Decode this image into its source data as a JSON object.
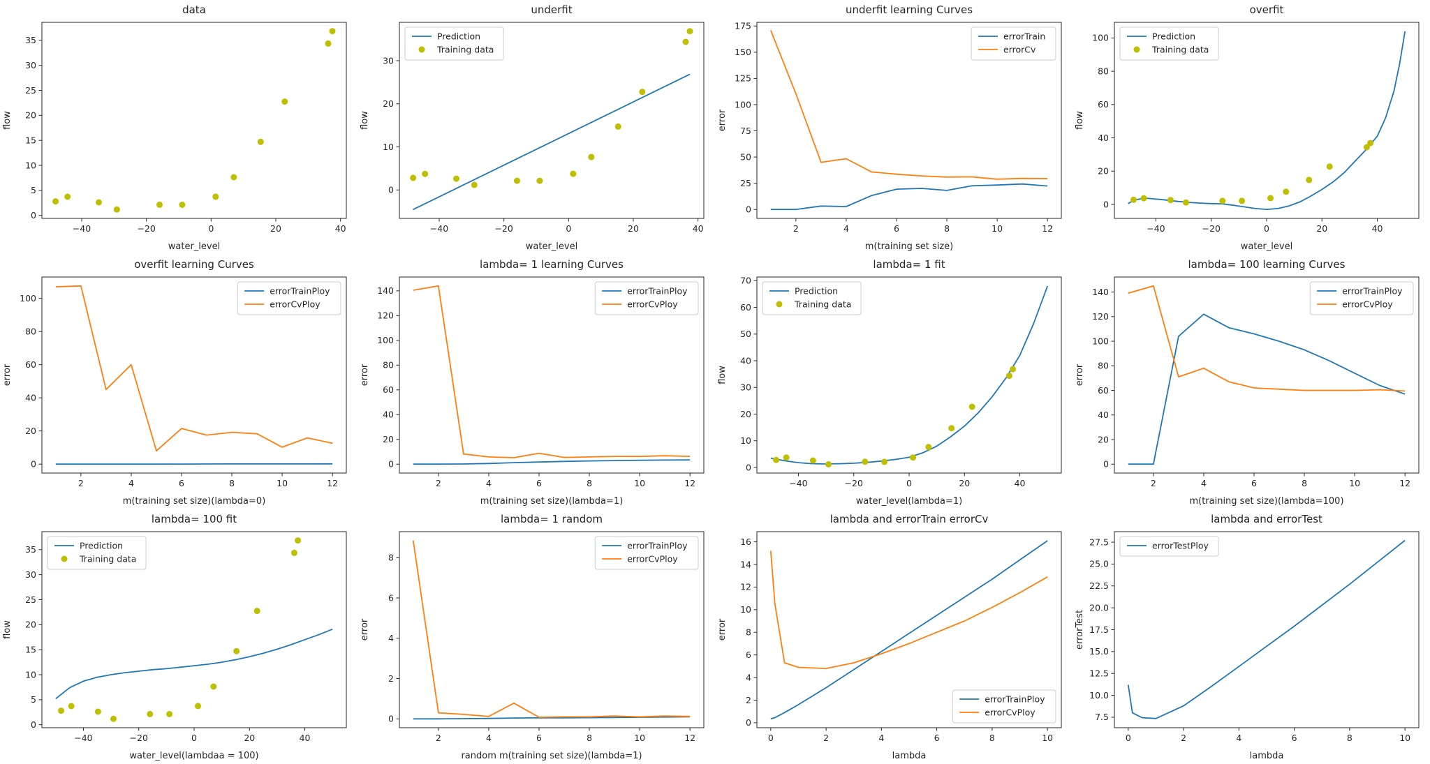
{
  "figure": {
    "background": "#ffffff"
  },
  "colors": {
    "blue": "#1f77b4",
    "orange": "#ff7f0e",
    "training_dots": "#bfbf00",
    "spine": "#262626",
    "legend_edge": "#cccccc"
  },
  "chart_data": [
    {
      "type": "scatter",
      "title": "data",
      "xlabel": "water_level",
      "ylabel": "flow",
      "xlim": [
        -52.3,
        41.8
      ],
      "ylim": [
        -0.6,
        38.6
      ],
      "xticks": [
        -40,
        -20,
        0,
        20,
        40
      ],
      "yticks": [
        0,
        5,
        10,
        15,
        20,
        25,
        30,
        35
      ],
      "legend": null,
      "series": [
        {
          "name": "Training data",
          "type": "scatter",
          "color": "#bfbf00",
          "x": [
            -15.94,
            -29.15,
            36.19,
            37.49,
            -48.06,
            -8.94,
            15.31,
            -34.71,
            1.39,
            -44.38,
            7.01,
            22.76
          ],
          "y": [
            2.13,
            1.17,
            34.36,
            36.84,
            2.81,
            2.12,
            14.71,
            2.61,
            3.74,
            3.73,
            7.63,
            22.75
          ]
        }
      ]
    },
    {
      "type": "mixed",
      "title": "underfit",
      "xlabel": "water_level",
      "ylabel": "flow",
      "xlim": [
        -52.3,
        41.8
      ],
      "ylim": [
        -6.6,
        38.9
      ],
      "xticks": [
        -40,
        -20,
        0,
        20,
        40
      ],
      "yticks": [
        0,
        10,
        20,
        30
      ],
      "legend": "upper-left",
      "series": [
        {
          "name": "Prediction",
          "type": "line",
          "color": "#1f77b4",
          "x": [
            -48.06,
            37.49
          ],
          "y": [
            -4.55,
            26.85
          ]
        },
        {
          "name": "Training data",
          "type": "scatter",
          "color": "#bfbf00",
          "x": [
            -15.94,
            -29.15,
            36.19,
            37.49,
            -48.06,
            -8.94,
            15.31,
            -34.71,
            1.39,
            -44.38,
            7.01,
            22.76
          ],
          "y": [
            2.13,
            1.17,
            34.36,
            36.84,
            2.81,
            2.12,
            14.71,
            2.61,
            3.74,
            3.73,
            7.63,
            22.75
          ]
        }
      ]
    },
    {
      "type": "line",
      "title": "underfit learning Curves",
      "xlabel": "m(training set size)",
      "ylabel": "error",
      "xlim": [
        0.45,
        12.55
      ],
      "ylim": [
        -8.5,
        178.5
      ],
      "xticks": [
        2,
        4,
        6,
        8,
        10,
        12
      ],
      "yticks": [
        0,
        25,
        50,
        75,
        100,
        125,
        150,
        175
      ],
      "legend": "upper-right",
      "series": [
        {
          "name": "errorTrain",
          "type": "line",
          "color": "#1f77b4",
          "x": [
            1,
            2,
            3,
            4,
            5,
            6,
            7,
            8,
            9,
            10,
            11,
            12
          ],
          "y": [
            0,
            0,
            3.3,
            2.8,
            13.2,
            19.4,
            20.1,
            18.2,
            22.6,
            23.3,
            24.3,
            22.4
          ]
        },
        {
          "name": "errorCv",
          "type": "line",
          "color": "#ff7f0e",
          "x": [
            1,
            2,
            3,
            4,
            5,
            6,
            7,
            8,
            9,
            10,
            11,
            12
          ],
          "y": [
            170.9,
            110.3,
            45.0,
            48.4,
            35.9,
            33.6,
            32.0,
            30.9,
            31.1,
            28.9,
            29.6,
            29.4
          ]
        }
      ]
    },
    {
      "type": "mixed",
      "title": "overfit",
      "xlabel": "water_level",
      "ylabel": "flow",
      "xlim": [
        -55,
        55
      ],
      "ylim": [
        -8.4,
        109.4
      ],
      "xticks": [
        -40,
        -20,
        0,
        20,
        40
      ],
      "yticks": [
        0,
        20,
        40,
        60,
        80,
        100
      ],
      "legend": "upper-left",
      "series": [
        {
          "name": "Prediction",
          "type": "line",
          "color": "#1f77b4",
          "x": [
            -50,
            -48,
            -44,
            -40,
            -36,
            -32,
            -28,
            -24,
            -20,
            -16,
            -12,
            -8,
            -4,
            0,
            4,
            8,
            12,
            16,
            20,
            24,
            28,
            32,
            36,
            40,
            43,
            46,
            48,
            50
          ],
          "y": [
            0.5,
            2.5,
            3.8,
            3.2,
            2.6,
            1.8,
            1.2,
            0.8,
            0.5,
            0.3,
            -0.5,
            -1.5,
            -2.5,
            -3.0,
            -2.5,
            -1.0,
            1.5,
            5.0,
            9.0,
            13.5,
            19.0,
            26.0,
            33.0,
            41.0,
            52.0,
            68.0,
            84.0,
            104.0
          ]
        },
        {
          "name": "Training data",
          "type": "scatter",
          "color": "#bfbf00",
          "x": [
            -15.94,
            -29.15,
            36.19,
            37.49,
            -48.06,
            -8.94,
            15.31,
            -34.71,
            1.39,
            -44.38,
            7.01,
            22.76
          ],
          "y": [
            2.13,
            1.17,
            34.36,
            36.84,
            2.81,
            2.12,
            14.71,
            2.61,
            3.74,
            3.73,
            7.63,
            22.75
          ]
        }
      ]
    },
    {
      "type": "line",
      "title": "overfit learning Curves",
      "xlabel": "m(training set size)(lambda=0)",
      "ylabel": "error",
      "xlim": [
        0.45,
        12.55
      ],
      "ylim": [
        -5.4,
        112.9
      ],
      "xticks": [
        2,
        4,
        6,
        8,
        10,
        12
      ],
      "yticks": [
        0,
        20,
        40,
        60,
        80,
        100
      ],
      "legend": "upper-right",
      "series": [
        {
          "name": "errorTrainPloy",
          "type": "line",
          "color": "#1f77b4",
          "x": [
            1,
            2,
            3,
            4,
            5,
            6,
            7,
            8,
            9,
            10,
            11,
            12
          ],
          "y": [
            0,
            0,
            0,
            0,
            0,
            0.05,
            0.08,
            0.1,
            0.1,
            0.12,
            0.13,
            0.15
          ]
        },
        {
          "name": "errorCvPloy",
          "type": "line",
          "color": "#ff7f0e",
          "x": [
            1,
            2,
            3,
            4,
            5,
            6,
            7,
            8,
            9,
            10,
            11,
            12
          ],
          "y": [
            107,
            107.5,
            45,
            60,
            8,
            21.5,
            17.5,
            19.2,
            18.3,
            10.2,
            15.8,
            12.6
          ]
        }
      ]
    },
    {
      "type": "line",
      "title": "lambda= 1 learning Curves",
      "xlabel": "m(training set size)(lambda=1)",
      "ylabel": "error",
      "xlim": [
        0.45,
        12.55
      ],
      "ylim": [
        -7.2,
        151.2
      ],
      "xticks": [
        2,
        4,
        6,
        8,
        10,
        12
      ],
      "yticks": [
        0,
        20,
        40,
        60,
        80,
        100,
        120,
        140
      ],
      "legend": "upper-right",
      "series": [
        {
          "name": "errorTrainPloy",
          "type": "line",
          "color": "#1f77b4",
          "x": [
            1,
            2,
            3,
            4,
            5,
            6,
            7,
            8,
            9,
            10,
            11,
            12
          ],
          "y": [
            0,
            0,
            0.1,
            0.5,
            1.2,
            1.7,
            2.2,
            2.6,
            2.9,
            3.1,
            3.3,
            3.4
          ]
        },
        {
          "name": "errorCvPloy",
          "type": "line",
          "color": "#ff7f0e",
          "x": [
            1,
            2,
            3,
            4,
            5,
            6,
            7,
            8,
            9,
            10,
            11,
            12
          ],
          "y": [
            140.5,
            144,
            8.2,
            5.8,
            5.2,
            8.8,
            5.4,
            5.8,
            6.3,
            6.2,
            6.8,
            6.3
          ]
        }
      ]
    },
    {
      "type": "mixed",
      "title": "lambda= 1 fit",
      "xlabel": "water_level(lambda=1)",
      "ylabel": "flow",
      "xlim": [
        -55,
        55
      ],
      "ylim": [
        -2.1,
        71.4
      ],
      "xticks": [
        -40,
        -20,
        0,
        20,
        40
      ],
      "yticks": [
        0,
        10,
        20,
        30,
        40,
        50,
        60,
        70
      ],
      "legend": "upper-left",
      "series": [
        {
          "name": "Prediction",
          "type": "line",
          "color": "#1f77b4",
          "x": [
            -50,
            -45,
            -40,
            -35,
            -30,
            -25,
            -20,
            -15,
            -10,
            -5,
            0,
            5,
            10,
            15,
            20,
            25,
            30,
            35,
            40,
            45,
            50
          ],
          "y": [
            3.5,
            2.5,
            1.8,
            1.4,
            1.3,
            1.4,
            1.6,
            1.9,
            2.4,
            3.0,
            3.8,
            5.5,
            8.0,
            11.5,
            15.5,
            20.5,
            26.5,
            33.5,
            42,
            54,
            68
          ]
        },
        {
          "name": "Training data",
          "type": "scatter",
          "color": "#bfbf00",
          "x": [
            -15.94,
            -29.15,
            36.19,
            37.49,
            -48.06,
            -8.94,
            15.31,
            -34.71,
            1.39,
            -44.38,
            7.01,
            22.76
          ],
          "y": [
            2.13,
            1.17,
            34.36,
            36.84,
            2.81,
            2.12,
            14.71,
            2.61,
            3.74,
            3.73,
            7.63,
            22.75
          ]
        }
      ]
    },
    {
      "type": "line",
      "title": "lambda= 100 learning Curves",
      "xlabel": "m(training set size)(lambda=100)",
      "ylabel": "error",
      "xlim": [
        0.45,
        12.55
      ],
      "ylim": [
        -7.25,
        152.25
      ],
      "xticks": [
        2,
        4,
        6,
        8,
        10,
        12
      ],
      "yticks": [
        0,
        20,
        40,
        60,
        80,
        100,
        120,
        140
      ],
      "legend": "upper-right",
      "series": [
        {
          "name": "errorTrainPloy",
          "type": "line",
          "color": "#1f77b4",
          "x": [
            1,
            2,
            3,
            4,
            5,
            6,
            7,
            8,
            9,
            10,
            11,
            12
          ],
          "y": [
            0,
            0,
            104,
            122,
            111,
            106,
            100,
            93,
            84,
            74,
            64,
            57
          ]
        },
        {
          "name": "errorCvPloy",
          "type": "line",
          "color": "#ff7f0e",
          "x": [
            1,
            2,
            3,
            4,
            5,
            6,
            7,
            8,
            9,
            10,
            11,
            12
          ],
          "y": [
            139,
            145,
            71,
            78,
            67,
            62,
            61,
            60,
            60,
            60,
            60.5,
            59.5
          ]
        }
      ]
    },
    {
      "type": "mixed",
      "title": "lambda= 100 fit",
      "xlabel": "water_level(lambdaa = 100)",
      "ylabel": "flow",
      "xlim": [
        -55,
        55
      ],
      "ylim": [
        -0.6,
        38.6
      ],
      "xticks": [
        -40,
        -20,
        0,
        20,
        40
      ],
      "yticks": [
        0,
        5,
        10,
        15,
        20,
        25,
        30,
        35
      ],
      "legend": "upper-left",
      "series": [
        {
          "name": "Prediction",
          "type": "line",
          "color": "#1f77b4",
          "x": [
            -50,
            -45,
            -40,
            -35,
            -30,
            -25,
            -20,
            -15,
            -10,
            -5,
            0,
            5,
            10,
            15,
            20,
            25,
            30,
            35,
            40,
            45,
            50
          ],
          "y": [
            5.2,
            7.4,
            8.7,
            9.5,
            10.0,
            10.4,
            10.7,
            11.0,
            11.2,
            11.5,
            11.8,
            12.1,
            12.5,
            13.0,
            13.6,
            14.3,
            15.1,
            16.0,
            17.0,
            18.0,
            19.1
          ]
        },
        {
          "name": "Training data",
          "type": "scatter",
          "color": "#bfbf00",
          "x": [
            -15.94,
            -29.15,
            36.19,
            37.49,
            -48.06,
            -8.94,
            15.31,
            -34.71,
            1.39,
            -44.38,
            7.01,
            22.76
          ],
          "y": [
            2.13,
            1.17,
            34.36,
            36.84,
            2.81,
            2.12,
            14.71,
            2.61,
            3.74,
            3.73,
            7.63,
            22.75
          ]
        }
      ]
    },
    {
      "type": "line",
      "title": "lambda= 1 random",
      "xlabel": "random m(training set size)(lambda=1)",
      "ylabel": "error",
      "xlim": [
        0.45,
        12.55
      ],
      "ylim": [
        -0.44,
        9.29
      ],
      "xticks": [
        2,
        4,
        6,
        8,
        10,
        12
      ],
      "yticks": [
        0,
        2,
        4,
        6,
        8
      ],
      "legend": "upper-right",
      "series": [
        {
          "name": "errorTrainPloy",
          "type": "line",
          "color": "#1f77b4",
          "x": [
            1,
            2,
            3,
            4,
            5,
            6,
            7,
            8,
            9,
            10,
            11,
            12
          ],
          "y": [
            0,
            0,
            0.01,
            0.02,
            0.04,
            0.05,
            0.05,
            0.06,
            0.07,
            0.08,
            0.09,
            0.1
          ]
        },
        {
          "name": "errorCvPloy",
          "type": "line",
          "color": "#ff7f0e",
          "x": [
            1,
            2,
            3,
            4,
            5,
            6,
            7,
            8,
            9,
            10,
            11,
            12
          ],
          "y": [
            8.85,
            0.3,
            0.22,
            0.12,
            0.78,
            0.08,
            0.1,
            0.1,
            0.14,
            0.1,
            0.14,
            0.12
          ]
        }
      ]
    },
    {
      "type": "line",
      "title": "lambda and errorTrain errorCv",
      "xlabel": "lambda",
      "ylabel": "error",
      "xlim": [
        -0.5,
        10.5
      ],
      "ylim": [
        -0.44,
        16.9
      ],
      "xticks": [
        0,
        2,
        4,
        6,
        8,
        10
      ],
      "yticks": [
        0,
        2,
        4,
        6,
        8,
        10,
        12,
        14,
        16
      ],
      "legend": "lower-right",
      "series": [
        {
          "name": "errorTrainPloy",
          "type": "line",
          "color": "#1f77b4",
          "x": [
            0,
            0.15,
            0.5,
            1,
            2,
            3,
            4,
            5,
            6,
            7,
            8,
            9,
            10
          ],
          "y": [
            0.35,
            0.45,
            0.9,
            1.6,
            3.1,
            4.7,
            6.3,
            7.9,
            9.5,
            11.1,
            12.7,
            14.4,
            16.1
          ]
        },
        {
          "name": "errorCvPloy",
          "type": "line",
          "color": "#ff7f0e",
          "x": [
            0,
            0.15,
            0.5,
            1,
            2,
            3,
            4,
            5,
            6,
            7,
            8,
            9,
            10
          ],
          "y": [
            15.2,
            10.5,
            5.3,
            4.9,
            4.8,
            5.3,
            6.1,
            7.0,
            8.0,
            9.0,
            10.2,
            11.5,
            12.9
          ]
        }
      ]
    },
    {
      "type": "line",
      "title": "lambda and errorTest",
      "xlabel": "lambda",
      "ylabel": "errorTest",
      "xlim": [
        -0.5,
        10.5
      ],
      "ylim": [
        6.3,
        28.7
      ],
      "xticks": [
        0,
        2,
        4,
        6,
        8,
        10
      ],
      "yticks": [
        7.5,
        10.0,
        12.5,
        15.0,
        17.5,
        20.0,
        22.5,
        25.0,
        27.5
      ],
      "ytick_labels": [
        "7.5",
        "10.0",
        "12.5",
        "15.0",
        "17.5",
        "20.0",
        "22.5",
        "25.0",
        "27.5"
      ],
      "legend": "upper-left",
      "series": [
        {
          "name": "errorTestPloy",
          "type": "line",
          "color": "#1f77b4",
          "x": [
            0,
            0.15,
            0.5,
            1,
            2,
            3,
            4,
            5,
            6,
            7,
            8,
            9,
            10
          ],
          "y": [
            11.2,
            8.0,
            7.45,
            7.35,
            8.8,
            11.0,
            13.3,
            15.6,
            17.9,
            20.3,
            22.7,
            25.2,
            27.7
          ]
        }
      ]
    }
  ]
}
